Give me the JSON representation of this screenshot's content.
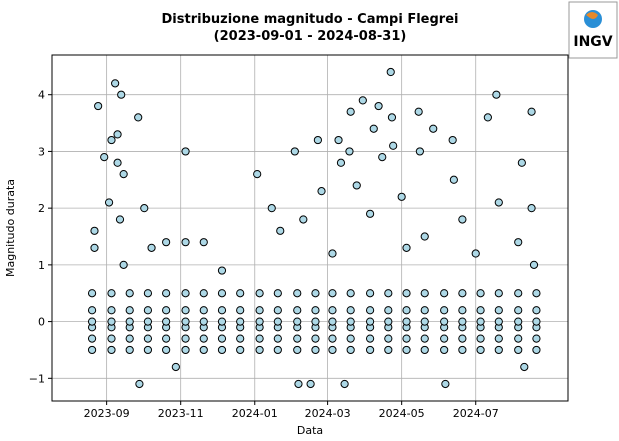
{
  "logo_text": "INGV",
  "chart_data": {
    "type": "scatter",
    "title": "Distribuzione magnitudo - Campi Flegrei",
    "subtitle": "(2023-09-01 - 2024-08-31)",
    "x_label": "Data",
    "y_label": "Magnitudo durata",
    "color": "#add8e6",
    "edge_color": "#000000",
    "grid": true,
    "xlim": [
      "2023-07-18",
      "2024-09-15"
    ],
    "xticks": [
      {
        "value": "2023-09-01",
        "label": "2023-09"
      },
      {
        "value": "2023-11-01",
        "label": "2023-11"
      },
      {
        "value": "2024-01-01",
        "label": "2024-01"
      },
      {
        "value": "2024-03-01",
        "label": "2024-03"
      },
      {
        "value": "2024-05-01",
        "label": "2024-05"
      },
      {
        "value": "2024-07-01",
        "label": "2024-07"
      }
    ],
    "ylim": [
      -1.4,
      4.7
    ],
    "yticks": [
      {
        "value": -1,
        "label": "−1"
      },
      0,
      1,
      2,
      3,
      4
    ],
    "x": [
      "2023-08-20",
      "2023-08-20",
      "2023-08-20",
      "2023-08-20",
      "2023-08-20",
      "2023-08-20",
      "2023-09-05",
      "2023-09-05",
      "2023-09-05",
      "2023-09-05",
      "2023-09-05",
      "2023-09-05",
      "2023-09-20",
      "2023-09-20",
      "2023-09-20",
      "2023-09-20",
      "2023-09-20",
      "2023-09-20",
      "2023-10-05",
      "2023-10-05",
      "2023-10-05",
      "2023-10-05",
      "2023-10-05",
      "2023-10-05",
      "2023-10-20",
      "2023-10-20",
      "2023-10-20",
      "2023-10-20",
      "2023-10-20",
      "2023-10-20",
      "2023-11-05",
      "2023-11-05",
      "2023-11-05",
      "2023-11-05",
      "2023-11-05",
      "2023-11-05",
      "2023-11-20",
      "2023-11-20",
      "2023-11-20",
      "2023-11-20",
      "2023-11-20",
      "2023-11-20",
      "2023-12-05",
      "2023-12-05",
      "2023-12-05",
      "2023-12-05",
      "2023-12-05",
      "2023-12-05",
      "2023-12-20",
      "2023-12-20",
      "2023-12-20",
      "2023-12-20",
      "2023-12-20",
      "2023-12-20",
      "2024-01-05",
      "2024-01-05",
      "2024-01-05",
      "2024-01-05",
      "2024-01-05",
      "2024-01-05",
      "2024-01-20",
      "2024-01-20",
      "2024-01-20",
      "2024-01-20",
      "2024-01-20",
      "2024-01-20",
      "2024-02-05",
      "2024-02-05",
      "2024-02-05",
      "2024-02-05",
      "2024-02-05",
      "2024-02-05",
      "2024-02-20",
      "2024-02-20",
      "2024-02-20",
      "2024-02-20",
      "2024-02-20",
      "2024-02-20",
      "2024-03-05",
      "2024-03-05",
      "2024-03-05",
      "2024-03-05",
      "2024-03-05",
      "2024-03-05",
      "2024-03-20",
      "2024-03-20",
      "2024-03-20",
      "2024-03-20",
      "2024-03-20",
      "2024-03-20",
      "2024-04-05",
      "2024-04-05",
      "2024-04-05",
      "2024-04-05",
      "2024-04-05",
      "2024-04-05",
      "2024-04-20",
      "2024-04-20",
      "2024-04-20",
      "2024-04-20",
      "2024-04-20",
      "2024-04-20",
      "2024-05-05",
      "2024-05-05",
      "2024-05-05",
      "2024-05-05",
      "2024-05-05",
      "2024-05-05",
      "2024-05-20",
      "2024-05-20",
      "2024-05-20",
      "2024-05-20",
      "2024-05-20",
      "2024-05-20",
      "2024-06-05",
      "2024-06-05",
      "2024-06-05",
      "2024-06-05",
      "2024-06-05",
      "2024-06-05",
      "2024-06-20",
      "2024-06-20",
      "2024-06-20",
      "2024-06-20",
      "2024-06-20",
      "2024-06-20",
      "2024-07-05",
      "2024-07-05",
      "2024-07-05",
      "2024-07-05",
      "2024-07-05",
      "2024-07-05",
      "2024-07-20",
      "2024-07-20",
      "2024-07-20",
      "2024-07-20",
      "2024-07-20",
      "2024-07-20",
      "2024-08-05",
      "2024-08-05",
      "2024-08-05",
      "2024-08-05",
      "2024-08-05",
      "2024-08-05",
      "2024-08-20",
      "2024-08-20",
      "2024-08-20",
      "2024-08-20",
      "2024-08-20",
      "2024-08-20",
      "2023-08-22",
      "2023-08-22",
      "2023-08-25",
      "2023-08-30",
      "2023-09-03",
      "2023-09-05",
      "2023-09-08",
      "2023-09-10",
      "2023-09-10",
      "2023-09-12",
      "2023-09-13",
      "2023-09-15",
      "2023-09-15",
      "2023-09-27",
      "2023-09-28",
      "2023-10-02",
      "2023-10-08",
      "2023-10-20",
      "2023-10-28",
      "2023-11-05",
      "2023-11-05",
      "2023-11-20",
      "2023-12-05",
      "2024-01-03",
      "2024-01-15",
      "2024-01-22",
      "2024-02-03",
      "2024-02-06",
      "2024-02-10",
      "2024-02-16",
      "2024-02-22",
      "2024-02-25",
      "2024-03-05",
      "2024-03-10",
      "2024-03-12",
      "2024-03-15",
      "2024-03-19",
      "2024-03-20",
      "2024-03-25",
      "2024-03-30",
      "2024-04-05",
      "2024-04-08",
      "2024-04-12",
      "2024-04-15",
      "2024-04-22",
      "2024-04-23",
      "2024-04-24",
      "2024-05-01",
      "2024-05-05",
      "2024-05-15",
      "2024-05-16",
      "2024-05-20",
      "2024-05-27",
      "2024-06-06",
      "2024-06-12",
      "2024-06-13",
      "2024-06-20",
      "2024-07-01",
      "2024-07-11",
      "2024-07-18",
      "2024-07-20",
      "2024-08-05",
      "2024-08-08",
      "2024-08-10",
      "2024-08-16",
      "2024-08-16",
      "2024-08-18"
    ],
    "values": [
      -0.5,
      -0.3,
      -0.1,
      0,
      0.2,
      0.5,
      -0.5,
      -0.3,
      -0.1,
      0,
      0.2,
      0.5,
      -0.5,
      -0.3,
      -0.1,
      0,
      0.2,
      0.5,
      -0.5,
      -0.3,
      -0.1,
      0,
      0.2,
      0.5,
      -0.5,
      -0.3,
      -0.1,
      0,
      0.2,
      0.5,
      -0.5,
      -0.3,
      -0.1,
      0,
      0.2,
      0.5,
      -0.5,
      -0.3,
      -0.1,
      0,
      0.2,
      0.5,
      -0.5,
      -0.3,
      -0.1,
      0,
      0.2,
      0.5,
      -0.5,
      -0.3,
      -0.1,
      0,
      0.2,
      0.5,
      -0.5,
      -0.3,
      -0.1,
      0,
      0.2,
      0.5,
      -0.5,
      -0.3,
      -0.1,
      0,
      0.2,
      0.5,
      -0.5,
      -0.3,
      -0.1,
      0,
      0.2,
      0.5,
      -0.5,
      -0.3,
      -0.1,
      0,
      0.2,
      0.5,
      -0.5,
      -0.3,
      -0.1,
      0,
      0.2,
      0.5,
      -0.5,
      -0.3,
      -0.1,
      0,
      0.2,
      0.5,
      -0.5,
      -0.3,
      -0.1,
      0,
      0.2,
      0.5,
      -0.5,
      -0.3,
      -0.1,
      0,
      0.2,
      0.5,
      -0.5,
      -0.3,
      -0.1,
      0,
      0.2,
      0.5,
      -0.5,
      -0.3,
      -0.1,
      0,
      0.2,
      0.5,
      -0.5,
      -0.3,
      -0.1,
      0,
      0.2,
      0.5,
      -0.5,
      -0.3,
      -0.1,
      0,
      0.2,
      0.5,
      -0.5,
      -0.3,
      -0.1,
      0,
      0.2,
      0.5,
      -0.5,
      -0.3,
      -0.1,
      0,
      0.2,
      0.5,
      -0.5,
      -0.3,
      -0.1,
      0,
      0.2,
      0.5,
      -0.5,
      -0.3,
      -0.1,
      0,
      0.2,
      0.5,
      1.6,
      1.3,
      3.8,
      2.9,
      2.1,
      3.2,
      4.2,
      2.8,
      3.3,
      1.8,
      4.0,
      2.6,
      1.0,
      3.6,
      -1.1,
      2.0,
      1.3,
      1.4,
      -0.8,
      3.0,
      1.4,
      1.4,
      0.9,
      2.6,
      2.0,
      1.6,
      3.0,
      -1.1,
      1.8,
      -1.1,
      3.2,
      2.3,
      1.2,
      3.2,
      2.8,
      -1.1,
      3.0,
      3.7,
      2.4,
      3.9,
      1.9,
      3.4,
      3.8,
      2.9,
      4.4,
      3.6,
      3.1,
      2.2,
      1.3,
      3.7,
      3.0,
      1.5,
      3.4,
      -1.1,
      3.2,
      2.5,
      1.8,
      1.2,
      3.6,
      4.0,
      2.1,
      1.4,
      2.8,
      -0.8,
      3.7,
      2.0,
      1.0
    ]
  }
}
